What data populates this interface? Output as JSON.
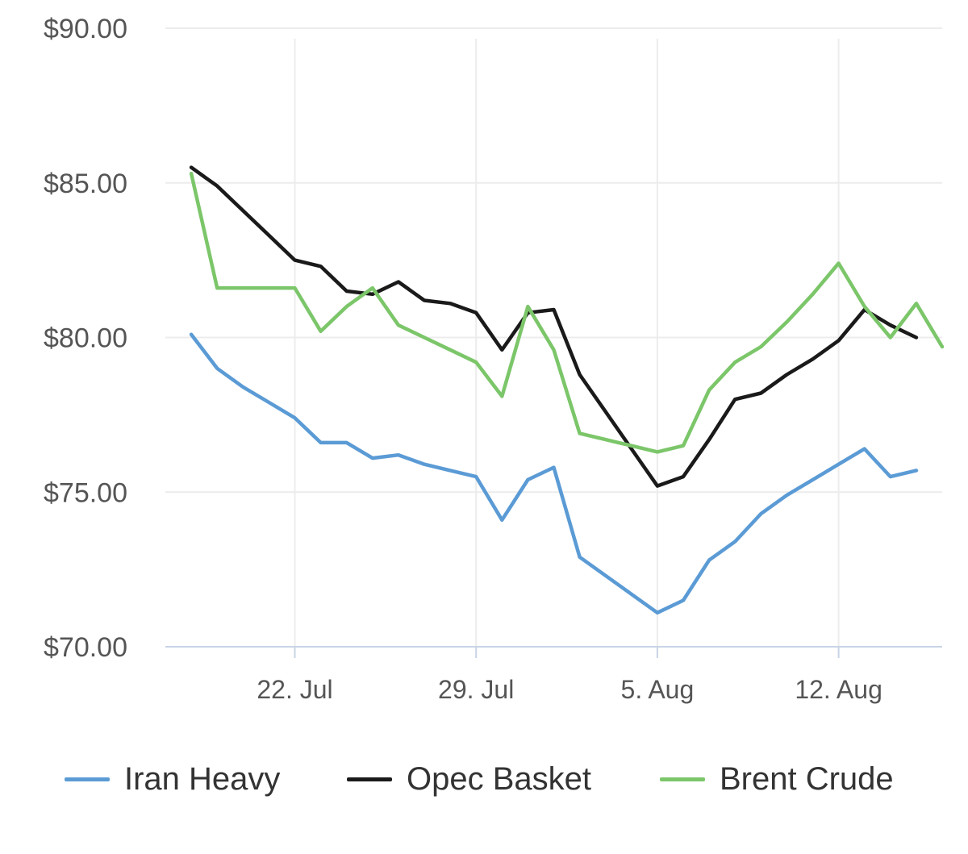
{
  "chart_data": {
    "type": "line",
    "title": "",
    "xlabel": "",
    "ylabel": "",
    "ylim": [
      70,
      90
    ],
    "yticks": [
      {
        "value": 90,
        "label": "$90.00"
      },
      {
        "value": 85,
        "label": "$85.00"
      },
      {
        "value": 80,
        "label": "$80.00"
      },
      {
        "value": 75,
        "label": "$75.00"
      },
      {
        "value": 70,
        "label": "$70.00"
      }
    ],
    "xticks": [
      {
        "date": "2019-07-22",
        "label": "22. Jul"
      },
      {
        "date": "2019-07-29",
        "label": "29. Jul"
      },
      {
        "date": "2019-08-05",
        "label": "5. Aug"
      },
      {
        "date": "2019-08-12",
        "label": "12. Aug"
      }
    ],
    "xlim": [
      "2019-07-17",
      "2019-08-16"
    ],
    "grid": {
      "vertical": true,
      "horizontal": true
    },
    "legend": "bottom",
    "series": [
      {
        "name": "Iran Heavy",
        "color": "#5b9bd5",
        "x": [
          "2019-07-18",
          "2019-07-19",
          "2019-07-20",
          "2019-07-21",
          "2019-07-22",
          "2019-07-23",
          "2019-07-24",
          "2019-07-25",
          "2019-07-26",
          "2019-07-27",
          "2019-07-28",
          "2019-07-29",
          "2019-07-30",
          "2019-07-31",
          "2019-08-01",
          "2019-08-02",
          "2019-08-03",
          "2019-08-04",
          "2019-08-05",
          "2019-08-06",
          "2019-08-07",
          "2019-08-08",
          "2019-08-09",
          "2019-08-10",
          "2019-08-11",
          "2019-08-12",
          "2019-08-13",
          "2019-08-14",
          "2019-08-15"
        ],
        "values": [
          80.1,
          79.0,
          78.4,
          77.9,
          77.4,
          76.6,
          76.6,
          76.1,
          76.2,
          75.9,
          75.7,
          75.5,
          74.1,
          75.4,
          75.8,
          72.9,
          72.3,
          71.7,
          71.1,
          71.5,
          72.8,
          73.4,
          74.3,
          74.9,
          75.4,
          75.9,
          76.4,
          75.5,
          75.7
        ]
      },
      {
        "name": "Opec Basket",
        "color": "#1a1a1a",
        "x": [
          "2019-07-18",
          "2019-07-19",
          "2019-07-20",
          "2019-07-21",
          "2019-07-22",
          "2019-07-23",
          "2019-07-24",
          "2019-07-25",
          "2019-07-26",
          "2019-07-27",
          "2019-07-28",
          "2019-07-29",
          "2019-07-30",
          "2019-07-31",
          "2019-08-01",
          "2019-08-02",
          "2019-08-03",
          "2019-08-04",
          "2019-08-05",
          "2019-08-06",
          "2019-08-07",
          "2019-08-08",
          "2019-08-09",
          "2019-08-10",
          "2019-08-11",
          "2019-08-12",
          "2019-08-13",
          "2019-08-14",
          "2019-08-15"
        ],
        "values": [
          85.5,
          84.9,
          84.1,
          83.3,
          82.5,
          82.3,
          81.5,
          81.4,
          81.8,
          81.2,
          81.1,
          80.8,
          79.6,
          80.8,
          80.9,
          78.8,
          77.6,
          76.4,
          75.2,
          75.5,
          76.7,
          78.0,
          78.2,
          78.8,
          79.3,
          79.9,
          80.9,
          80.4,
          80.0
        ]
      },
      {
        "name": "Brent Crude",
        "color": "#7cc66a",
        "x": [
          "2019-07-18",
          "2019-07-19",
          "2019-07-20",
          "2019-07-21",
          "2019-07-22",
          "2019-07-23",
          "2019-07-24",
          "2019-07-25",
          "2019-07-26",
          "2019-07-27",
          "2019-07-28",
          "2019-07-29",
          "2019-07-30",
          "2019-07-31",
          "2019-08-01",
          "2019-08-02",
          "2019-08-03",
          "2019-08-04",
          "2019-08-05",
          "2019-08-06",
          "2019-08-07",
          "2019-08-08",
          "2019-08-09",
          "2019-08-10",
          "2019-08-11",
          "2019-08-12",
          "2019-08-13",
          "2019-08-14",
          "2019-08-15",
          "2019-08-16"
        ],
        "values": [
          85.3,
          81.6,
          81.6,
          81.6,
          81.6,
          80.2,
          81.0,
          81.6,
          80.4,
          80.0,
          79.6,
          79.2,
          78.1,
          81.0,
          79.6,
          76.9,
          76.7,
          76.5,
          76.3,
          76.5,
          78.3,
          79.2,
          79.7,
          80.5,
          81.4,
          82.4,
          81.0,
          80.0,
          81.1,
          79.7
        ]
      }
    ]
  }
}
